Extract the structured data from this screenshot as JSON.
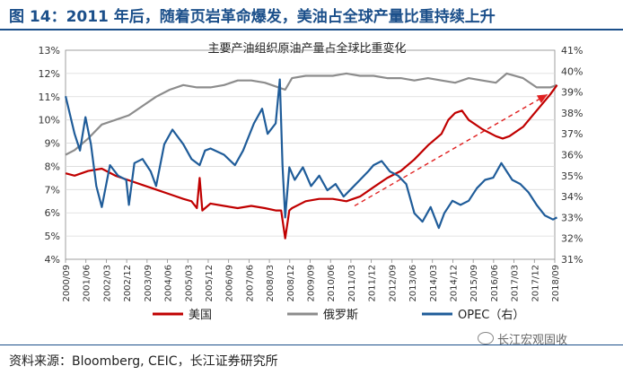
{
  "figure": {
    "title": "图 14：2011 年后，随着页岩革命爆发，美油占全球产量比重持续上升",
    "source": "资料来源：Bloomberg, CEIC，长江证券研究所",
    "watermark": "长江宏观固收"
  },
  "chart_data": {
    "type": "line",
    "title": "主要产油组织原油产量占全球比重变化",
    "xlabel": "",
    "ylabel_left": "",
    "ylabel_right": "",
    "left_axis": {
      "min": 4,
      "max": 13,
      "ticks": [
        "4%",
        "5%",
        "6%",
        "7%",
        "8%",
        "9%",
        "10%",
        "11%",
        "12%",
        "13%"
      ]
    },
    "right_axis": {
      "min": 31,
      "max": 41,
      "ticks": [
        "31%",
        "32%",
        "33%",
        "34%",
        "35%",
        "36%",
        "37%",
        "38%",
        "39%",
        "40%",
        "41%"
      ]
    },
    "x_start": "2000/09",
    "x_end": "2018/09",
    "x_ticks": [
      "2000/09",
      "2001/06",
      "2002/03",
      "2002/12",
      "2003/09",
      "2004/06",
      "2005/03",
      "2005/12",
      "2006/09",
      "2007/06",
      "2008/03",
      "2008/12",
      "2009/09",
      "2010/06",
      "2011/03",
      "2011/12",
      "2012/09",
      "2013/06",
      "2014/03",
      "2014/12",
      "2015/09",
      "2016/06",
      "2017/03",
      "2017/12",
      "2018/09"
    ],
    "legend": [
      "美国",
      "俄罗斯",
      "OPEC（右）"
    ],
    "legend_position": "bottom",
    "colors": {
      "us": "#c00000",
      "russia": "#8c8c8c",
      "opec": "#1f5c99",
      "trend": "#e02020",
      "grid": "#d9d9d9"
    },
    "series": [
      {
        "name": "美国",
        "axis": "left",
        "color": "#c00000",
        "points": [
          [
            2000.67,
            7.7
          ],
          [
            2001.0,
            7.6
          ],
          [
            2001.5,
            7.8
          ],
          [
            2002.0,
            7.9
          ],
          [
            2002.5,
            7.6
          ],
          [
            2003.0,
            7.4
          ],
          [
            2003.5,
            7.2
          ],
          [
            2004.0,
            7.0
          ],
          [
            2004.5,
            6.8
          ],
          [
            2005.0,
            6.6
          ],
          [
            2005.3,
            6.5
          ],
          [
            2005.5,
            6.2
          ],
          [
            2005.6,
            7.5
          ],
          [
            2005.7,
            6.1
          ],
          [
            2006.0,
            6.4
          ],
          [
            2006.5,
            6.3
          ],
          [
            2007.0,
            6.2
          ],
          [
            2007.5,
            6.3
          ],
          [
            2008.0,
            6.2
          ],
          [
            2008.4,
            6.1
          ],
          [
            2008.6,
            6.1
          ],
          [
            2008.75,
            4.9
          ],
          [
            2008.9,
            6.1
          ],
          [
            2009.0,
            6.2
          ],
          [
            2009.5,
            6.5
          ],
          [
            2010.0,
            6.6
          ],
          [
            2010.5,
            6.6
          ],
          [
            2011.0,
            6.5
          ],
          [
            2011.5,
            6.7
          ],
          [
            2012.0,
            7.1
          ],
          [
            2012.5,
            7.5
          ],
          [
            2013.0,
            7.8
          ],
          [
            2013.5,
            8.3
          ],
          [
            2014.0,
            8.9
          ],
          [
            2014.5,
            9.4
          ],
          [
            2014.75,
            10.0
          ],
          [
            2015.0,
            10.3
          ],
          [
            2015.25,
            10.4
          ],
          [
            2015.5,
            10.0
          ],
          [
            2016.0,
            9.6
          ],
          [
            2016.5,
            9.3
          ],
          [
            2016.75,
            9.2
          ],
          [
            2017.0,
            9.3
          ],
          [
            2017.5,
            9.7
          ],
          [
            2018.0,
            10.4
          ],
          [
            2018.5,
            11.1
          ],
          [
            2018.75,
            11.5
          ]
        ]
      },
      {
        "name": "俄罗斯",
        "axis": "left",
        "color": "#8c8c8c",
        "points": [
          [
            2000.67,
            8.5
          ],
          [
            2001.0,
            8.7
          ],
          [
            2001.5,
            9.2
          ],
          [
            2002.0,
            9.8
          ],
          [
            2002.5,
            10.0
          ],
          [
            2003.0,
            10.2
          ],
          [
            2003.5,
            10.6
          ],
          [
            2004.0,
            11.0
          ],
          [
            2004.5,
            11.3
          ],
          [
            2005.0,
            11.5
          ],
          [
            2005.5,
            11.4
          ],
          [
            2006.0,
            11.4
          ],
          [
            2006.5,
            11.5
          ],
          [
            2007.0,
            11.7
          ],
          [
            2007.5,
            11.7
          ],
          [
            2008.0,
            11.6
          ],
          [
            2008.5,
            11.4
          ],
          [
            2008.75,
            11.3
          ],
          [
            2009.0,
            11.8
          ],
          [
            2009.5,
            11.9
          ],
          [
            2010.0,
            11.9
          ],
          [
            2010.5,
            11.9
          ],
          [
            2011.0,
            12.0
          ],
          [
            2011.5,
            11.9
          ],
          [
            2012.0,
            11.9
          ],
          [
            2012.5,
            11.8
          ],
          [
            2013.0,
            11.8
          ],
          [
            2013.5,
            11.7
          ],
          [
            2014.0,
            11.8
          ],
          [
            2014.5,
            11.7
          ],
          [
            2015.0,
            11.6
          ],
          [
            2015.5,
            11.8
          ],
          [
            2016.0,
            11.7
          ],
          [
            2016.5,
            11.6
          ],
          [
            2016.9,
            12.0
          ],
          [
            2017.5,
            11.8
          ],
          [
            2018.0,
            11.4
          ],
          [
            2018.5,
            11.4
          ],
          [
            2018.75,
            11.5
          ]
        ]
      },
      {
        "name": "OPEC（右）",
        "axis": "right",
        "color": "#1f5c99",
        "points": [
          [
            2000.67,
            38.8
          ],
          [
            2001.0,
            37.0
          ],
          [
            2001.2,
            36.2
          ],
          [
            2001.4,
            37.8
          ],
          [
            2001.6,
            36.5
          ],
          [
            2001.8,
            34.5
          ],
          [
            2002.0,
            33.5
          ],
          [
            2002.3,
            35.5
          ],
          [
            2002.6,
            35.0
          ],
          [
            2002.9,
            34.8
          ],
          [
            2003.0,
            33.6
          ],
          [
            2003.2,
            35.6
          ],
          [
            2003.5,
            35.8
          ],
          [
            2003.8,
            35.2
          ],
          [
            2004.0,
            34.5
          ],
          [
            2004.3,
            36.5
          ],
          [
            2004.6,
            37.2
          ],
          [
            2005.0,
            36.5
          ],
          [
            2005.3,
            35.8
          ],
          [
            2005.6,
            35.5
          ],
          [
            2005.8,
            36.2
          ],
          [
            2006.0,
            36.3
          ],
          [
            2006.5,
            36.0
          ],
          [
            2006.9,
            35.5
          ],
          [
            2007.2,
            36.2
          ],
          [
            2007.6,
            37.5
          ],
          [
            2007.9,
            38.2
          ],
          [
            2008.1,
            37.0
          ],
          [
            2008.4,
            37.5
          ],
          [
            2008.55,
            39.6
          ],
          [
            2008.65,
            35.5
          ],
          [
            2008.75,
            33.0
          ],
          [
            2008.9,
            35.4
          ],
          [
            2009.1,
            34.8
          ],
          [
            2009.4,
            35.4
          ],
          [
            2009.7,
            34.5
          ],
          [
            2010.0,
            35.0
          ],
          [
            2010.3,
            34.3
          ],
          [
            2010.6,
            34.6
          ],
          [
            2010.9,
            34.0
          ],
          [
            2011.2,
            34.4
          ],
          [
            2011.5,
            34.8
          ],
          [
            2011.8,
            35.2
          ],
          [
            2012.0,
            35.5
          ],
          [
            2012.3,
            35.7
          ],
          [
            2012.6,
            35.2
          ],
          [
            2012.9,
            35.0
          ],
          [
            2013.2,
            34.6
          ],
          [
            2013.5,
            33.2
          ],
          [
            2013.8,
            32.8
          ],
          [
            2014.1,
            33.5
          ],
          [
            2014.4,
            32.5
          ],
          [
            2014.6,
            33.2
          ],
          [
            2014.9,
            33.8
          ],
          [
            2015.2,
            33.6
          ],
          [
            2015.5,
            33.8
          ],
          [
            2015.8,
            34.4
          ],
          [
            2016.1,
            34.8
          ],
          [
            2016.4,
            34.9
          ],
          [
            2016.7,
            35.6
          ],
          [
            2016.9,
            35.2
          ],
          [
            2017.1,
            34.8
          ],
          [
            2017.4,
            34.6
          ],
          [
            2017.7,
            34.2
          ],
          [
            2018.0,
            33.6
          ],
          [
            2018.3,
            33.1
          ],
          [
            2018.6,
            32.9
          ],
          [
            2018.75,
            33.0
          ]
        ]
      }
    ],
    "trend_arrow": {
      "from": [
        2011.3,
        6.3
      ],
      "to": [
        2018.4,
        11.1
      ],
      "style": "dashed"
    }
  }
}
